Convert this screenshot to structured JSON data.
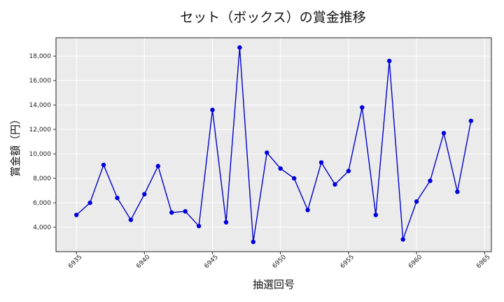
{
  "chart_data": {
    "type": "line",
    "title": "セット（ボックス）の賞金推移",
    "xlabel": "抽選回号",
    "ylabel": "賞金額（円）",
    "xlim": [
      6933.5,
      6965.5
    ],
    "ylim": [
      2000,
      19500
    ],
    "xticks": [
      6935,
      6940,
      6945,
      6950,
      6955,
      6960,
      6965
    ],
    "yticks": [
      4000,
      6000,
      8000,
      10000,
      12000,
      14000,
      16000,
      18000
    ],
    "ytick_labels": [
      "4,000",
      "6,000",
      "8,000",
      "10,000",
      "12,000",
      "14,000",
      "16,000",
      "18,000"
    ],
    "grid": true,
    "series": [
      {
        "color": "#0000cc",
        "x": [
          6935,
          6936,
          6937,
          6938,
          6939,
          6940,
          6941,
          6942,
          6943,
          6944,
          6945,
          6946,
          6947,
          6948,
          6949,
          6950,
          6951,
          6952,
          6953,
          6954,
          6955,
          6956,
          6957,
          6958,
          6959,
          6960,
          6961,
          6962,
          6963,
          6964
        ],
        "y": [
          5000,
          6000,
          9100,
          6400,
          4600,
          6700,
          9000,
          5200,
          5300,
          4100,
          13600,
          4400,
          18700,
          2800,
          10100,
          8800,
          8000,
          5400,
          9300,
          7500,
          8600,
          13800,
          5000,
          17600,
          3000,
          6100,
          7800,
          11700,
          6900,
          12700
        ]
      }
    ]
  },
  "colors": {
    "plot_background": "#ebebeb",
    "grid": "#ffffff",
    "line": "#0000cc",
    "marker": "#0000dd"
  }
}
